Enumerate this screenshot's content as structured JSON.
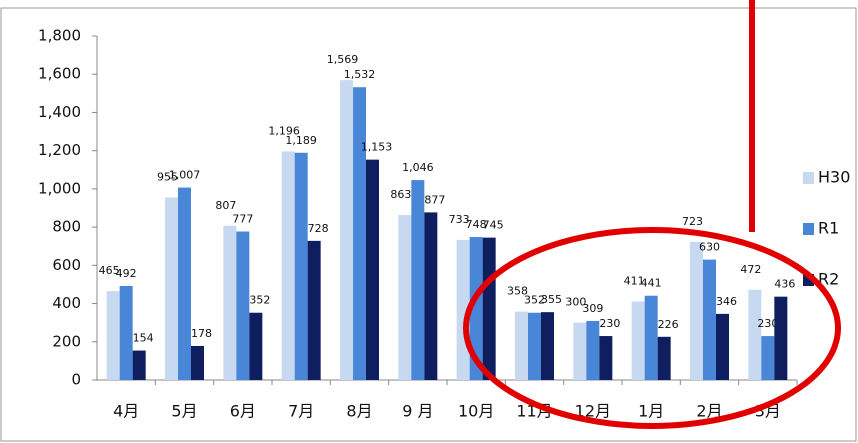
{
  "chart_data": {
    "type": "bar",
    "categories": [
      "4月",
      "5月",
      "6月",
      "7月",
      "8月",
      "9 月",
      "10月",
      "11月",
      "12月",
      "1月",
      "2月",
      "3月"
    ],
    "series": [
      {
        "name": "H30",
        "color": "#c6d9f1",
        "values": [
          465,
          955,
          807,
          1196,
          1569,
          863,
          733,
          358,
          300,
          411,
          723,
          472
        ],
        "value_labels": [
          "465",
          "955",
          "807",
          "1,196",
          "1,569",
          "863",
          "733",
          "358",
          "300",
          "411",
          "723",
          "472"
        ]
      },
      {
        "name": "R1",
        "color": "#4a86d8",
        "values": [
          492,
          1007,
          777,
          1189,
          1532,
          1046,
          748,
          352,
          309,
          441,
          630,
          230
        ],
        "value_labels": [
          "492",
          "1,007",
          "777",
          "1,189",
          "1,532",
          "1,046",
          "748",
          "352",
          "309",
          "441",
          "630",
          "230"
        ]
      },
      {
        "name": "R2",
        "color": "#0f1e5e",
        "values": [
          154,
          178,
          352,
          728,
          1153,
          877,
          745,
          355,
          230,
          226,
          346,
          436
        ],
        "value_labels": [
          "154",
          "178",
          "352",
          "728",
          "1,153",
          "877",
          "745",
          "355",
          "230",
          "226",
          "346",
          "436"
        ]
      }
    ],
    "ylim": [
      0,
      1800
    ],
    "yticks": [
      0,
      200,
      400,
      600,
      800,
      {
        "value": 1000,
        "label": "1,000"
      },
      {
        "value": 1200,
        "label": "1,200"
      },
      {
        "value": 1400,
        "label": "1,400"
      },
      {
        "value": 1600,
        "label": "1,600"
      },
      {
        "value": 1800,
        "label": "1,800"
      }
    ],
    "legend": "right"
  }
}
